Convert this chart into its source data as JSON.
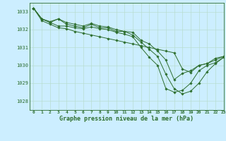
{
  "title": "Graphe pression niveau de la mer (hPa)",
  "bg_color": "#cceeff",
  "grid_color": "#b8ddd0",
  "line_color": "#2d6e2d",
  "xlim": [
    -0.5,
    23
  ],
  "ylim": [
    1027.5,
    1033.5
  ],
  "yticks": [
    1028,
    1029,
    1030,
    1031,
    1032,
    1033
  ],
  "xticks": [
    0,
    1,
    2,
    3,
    4,
    5,
    6,
    7,
    8,
    9,
    10,
    11,
    12,
    13,
    14,
    15,
    16,
    17,
    18,
    19,
    20,
    21,
    22,
    23
  ],
  "series": [
    [
      1033.2,
      1032.6,
      1032.4,
      1032.6,
      1032.3,
      1032.2,
      1032.1,
      1032.3,
      1032.1,
      1032.1,
      1031.9,
      1031.9,
      1031.85,
      1031.4,
      1031.2,
      1030.8,
      1030.3,
      1029.2,
      1029.55,
      1029.7,
      1030.0,
      1030.1,
      1030.4,
      1030.5
    ],
    [
      1033.2,
      1032.6,
      1032.4,
      1032.2,
      1032.2,
      1032.1,
      1032.05,
      1032.15,
      1032.05,
      1032.0,
      1031.85,
      1031.75,
      1031.6,
      1031.0,
      1030.45,
      1030.0,
      1028.7,
      1028.5,
      1028.6,
      1029.0,
      1029.7,
      1030.0,
      1030.15,
      1030.45
    ],
    [
      1033.2,
      1032.6,
      1032.45,
      1032.6,
      1032.4,
      1032.3,
      1032.2,
      1032.35,
      1032.2,
      1032.15,
      1032.0,
      1031.9,
      1031.7,
      1031.3,
      1030.9,
      1030.5,
      1029.5,
      1028.7,
      1028.4,
      1028.55,
      1029.0,
      1029.65,
      1030.1,
      1030.45
    ],
    [
      1033.2,
      1032.5,
      1032.3,
      1032.1,
      1032.05,
      1031.9,
      1031.8,
      1031.7,
      1031.6,
      1031.5,
      1031.4,
      1031.3,
      1031.2,
      1031.1,
      1031.0,
      1030.9,
      1030.8,
      1030.7,
      1029.8,
      1029.6,
      1030.0,
      1030.1,
      1030.3,
      1030.5
    ]
  ]
}
